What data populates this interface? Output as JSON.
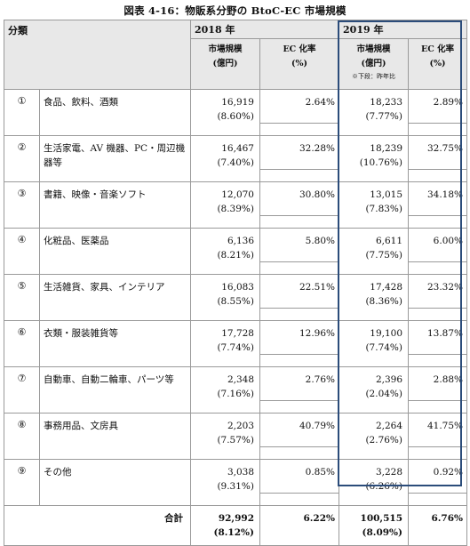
{
  "title": "図表 4-16：物販系分野の BtoC-EC 市場規模",
  "header": {
    "category": "分類",
    "year_2018": "2018 年",
    "year_2019": "2019 年",
    "size_line1": "市場規模",
    "size_line2": "(億円)",
    "ec_line1": "EC 化率",
    "ec_line2": "(%)",
    "note": "※下段：昨年比"
  },
  "rows": [
    {
      "num": "①",
      "name": "食品、飲料、酒類",
      "v2018": "16,919",
      "g2018": "(8.60%)",
      "r2018": "2.64%",
      "v2019": "18,233",
      "g2019": "(7.77%)",
      "r2019": "2.89%"
    },
    {
      "num": "②",
      "name": "生活家電、AV 機器、PC・周辺機器等",
      "v2018": "16,467",
      "g2018": "(7.40%)",
      "r2018": "32.28%",
      "v2019": "18,239",
      "g2019": "(10.76%)",
      "r2019": "32.75%"
    },
    {
      "num": "③",
      "name": "書籍、映像・音楽ソフト",
      "v2018": "12,070",
      "g2018": "(8.39%)",
      "r2018": "30.80%",
      "v2019": "13,015",
      "g2019": "(7.83%)",
      "r2019": "34.18%"
    },
    {
      "num": "④",
      "name": "化粧品、医薬品",
      "v2018": "6,136",
      "g2018": "(8.21%)",
      "r2018": "5.80%",
      "v2019": "6,611",
      "g2019": "(7.75%)",
      "r2019": "6.00%"
    },
    {
      "num": "⑤",
      "name": "生活雑貨、家具、インテリア",
      "v2018": "16,083",
      "g2018": "(8.55%)",
      "r2018": "22.51%",
      "v2019": "17,428",
      "g2019": "(8.36%)",
      "r2019": "23.32%"
    },
    {
      "num": "⑥",
      "name": "衣類・服装雑貨等",
      "v2018": "17,728",
      "g2018": "(7.74%)",
      "r2018": "12.96%",
      "v2019": "19,100",
      "g2019": "(7.74%)",
      "r2019": "13.87%"
    },
    {
      "num": "⑦",
      "name": "自動車、自動二輪車、パーツ等",
      "v2018": "2,348",
      "g2018": "(7.16%)",
      "r2018": "2.76%",
      "v2019": "2,396",
      "g2019": "(2.04%)",
      "r2019": "2.88%"
    },
    {
      "num": "⑧",
      "name": "事務用品、文房具",
      "v2018": "2,203",
      "g2018": "(7.57%)",
      "r2018": "40.79%",
      "v2019": "2,264",
      "g2019": "(2.76%)",
      "r2019": "41.75%"
    },
    {
      "num": "⑨",
      "name": "その他",
      "v2018": "3,038",
      "g2018": "(9.31%)",
      "r2018": "0.85%",
      "v2019": "3,228",
      "g2019": "(6.26%)",
      "r2019": "0.92%"
    }
  ],
  "total": {
    "label": "合計",
    "v2018": "92,992",
    "g2018": "(8.12%)",
    "r2018": "6.22%",
    "v2019": "100,515",
    "g2019": "(8.09%)",
    "r2019": "6.76%"
  },
  "colors": {
    "header_bg": "#e8e8e8",
    "border": "#9a9a9a",
    "highlight_box": "#2b4c7a"
  }
}
